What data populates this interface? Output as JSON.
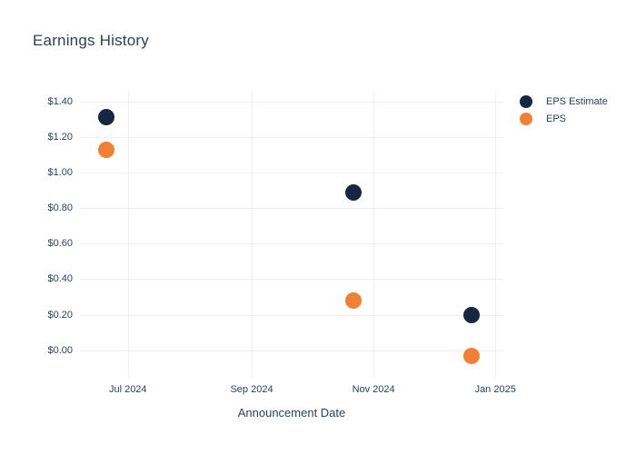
{
  "title": "Earnings History",
  "colors": {
    "navy": "#152741",
    "orange": "#f08033",
    "grid": "#ebf0f8",
    "text": "#2a3f5f",
    "background": "#ffffff"
  },
  "legend": {
    "items": [
      {
        "label": "EPS Estimate",
        "color": "#152741"
      },
      {
        "label": "EPS",
        "color": "#f08033"
      }
    ]
  },
  "chart_data": {
    "type": "scatter",
    "title": "Earnings History",
    "xlabel": "Announcement Date",
    "ylabel": "",
    "x_dates": [
      "2024-06-20",
      "2024-10-22",
      "2024-12-20"
    ],
    "series": [
      {
        "name": "EPS Estimate",
        "color": "#152741",
        "values": [
          1.31,
          0.89,
          0.2
        ]
      },
      {
        "name": "EPS",
        "color": "#f08033",
        "values": [
          1.13,
          0.28,
          -0.03
        ]
      }
    ],
    "x_domain": [
      "2024-06-07",
      "2025-01-05"
    ],
    "x_ticks": [
      {
        "label": "Jul 2024",
        "date": "2024-07-01"
      },
      {
        "label": "Sep 2024",
        "date": "2024-09-01"
      },
      {
        "label": "Nov 2024",
        "date": "2024-11-01"
      },
      {
        "label": "Jan 2025",
        "date": "2025-01-01"
      }
    ],
    "ylim": [
      -0.15,
      1.46
    ],
    "y_ticks": [
      {
        "value": 0.0,
        "label": "$0.00"
      },
      {
        "value": 0.2,
        "label": "$0.20"
      },
      {
        "value": 0.4,
        "label": "$0.40"
      },
      {
        "value": 0.6,
        "label": "$0.60"
      },
      {
        "value": 0.8,
        "label": "$0.80"
      },
      {
        "value": 1.0,
        "label": "$1.00"
      },
      {
        "value": 1.2,
        "label": "$1.20"
      },
      {
        "value": 1.4,
        "label": "$1.40"
      }
    ],
    "grid": true,
    "legend_position": "right",
    "marker_size_px": 18
  }
}
